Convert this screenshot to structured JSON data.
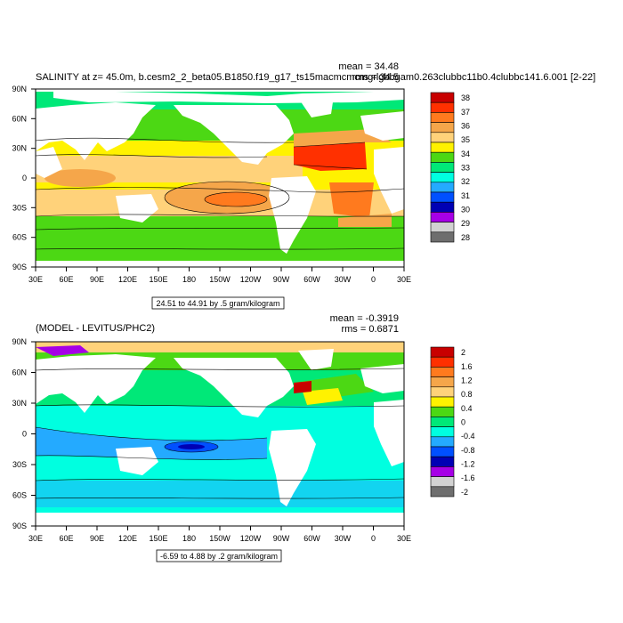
{
  "figure": {
    "top": {
      "title": "SALINITY at z=  45.0m, b.cesm2_2_beta05.B1850.f19_g17_ts15macmcmcmgrlgbbgam0.263clubbc11b0.4clubbc141.6.001 [2-22]",
      "stat1": "mean = 34.48",
      "stat2": "rms = 34.5",
      "contour_info": "24.51 to 44.91 by .5 gram/kilogram",
      "colorbar": {
        "labels": [
          "38",
          "37",
          "36",
          "35",
          "34",
          "33",
          "32",
          "31",
          "30",
          "29",
          "28"
        ],
        "colors": [
          "#c80000",
          "#ff3000",
          "#ff7a1e",
          "#f5a64a",
          "#ffd27a",
          "#fff200",
          "#4cd814",
          "#00e878",
          "#00ffe0",
          "#24aaff",
          "#0050ff",
          "#0000b4",
          "#a600e6",
          "#d2d2d2",
          "#6e6e6e"
        ]
      }
    },
    "bottom": {
      "title": "(MODEL - LEVITUS/PHC2)",
      "stat1": "mean = -0.3919",
      "stat2": "rms = 0.6871",
      "contour_info": "-6.59 to 4.88 by .2 gram/kilogram",
      "colorbar": {
        "labels": [
          "2",
          "1.6",
          "1.2",
          "0.8",
          "0.4",
          "0",
          "-0.4",
          "-0.8",
          "-1.2",
          "-1.6",
          "-2"
        ],
        "colors": [
          "#c80000",
          "#ff3000",
          "#ff7a1e",
          "#f5a64a",
          "#ffd27a",
          "#fff200",
          "#4cd814",
          "#00e878",
          "#00ffe0",
          "#24aaff",
          "#0050ff",
          "#0000b4",
          "#a600e6",
          "#d2d2d2",
          "#6e6e6e"
        ]
      }
    },
    "axes": {
      "x_ticks": [
        "30E",
        "60E",
        "90E",
        "120E",
        "150E",
        "180",
        "150W",
        "120W",
        "90W",
        "60W",
        "30W",
        "0",
        "30E"
      ],
      "y_ticks": [
        "90N",
        "60N",
        "30N",
        "0",
        "30S",
        "60S",
        "90S"
      ]
    }
  }
}
